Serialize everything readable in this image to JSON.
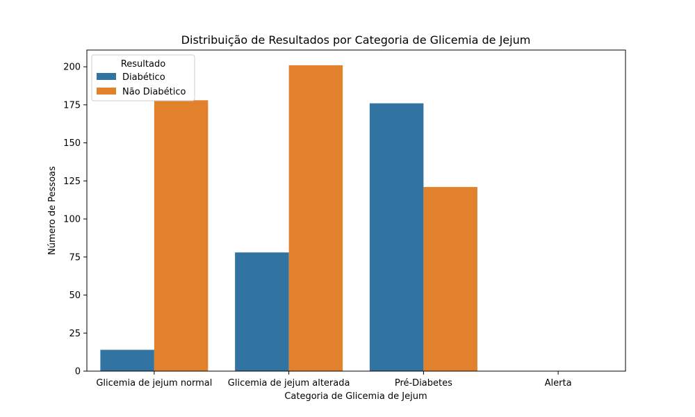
{
  "chart_data": {
    "type": "bar",
    "title": "Distribuição de Resultados por Categoria de Glicemia de Jejum",
    "xlabel": "Categoria de Glicemia de Jejum",
    "ylabel": "Número de Pessoas",
    "categories": [
      "Glicemia de jejum normal",
      "Glicemia de jejum alterada",
      "Pré-Diabetes",
      "Alerta"
    ],
    "series": [
      {
        "name": "Diabético",
        "values": [
          14,
          78,
          176,
          0
        ],
        "color": "#3274a1"
      },
      {
        "name": "Não Diabético",
        "values": [
          178,
          201,
          121,
          0
        ],
        "color": "#e1812c"
      }
    ],
    "ylim": [
      0,
      211
    ],
    "yticks": [
      0,
      25,
      50,
      75,
      100,
      125,
      150,
      175,
      200
    ],
    "grid": false,
    "legend": {
      "title": "Resultado",
      "placement": "top-left"
    }
  }
}
